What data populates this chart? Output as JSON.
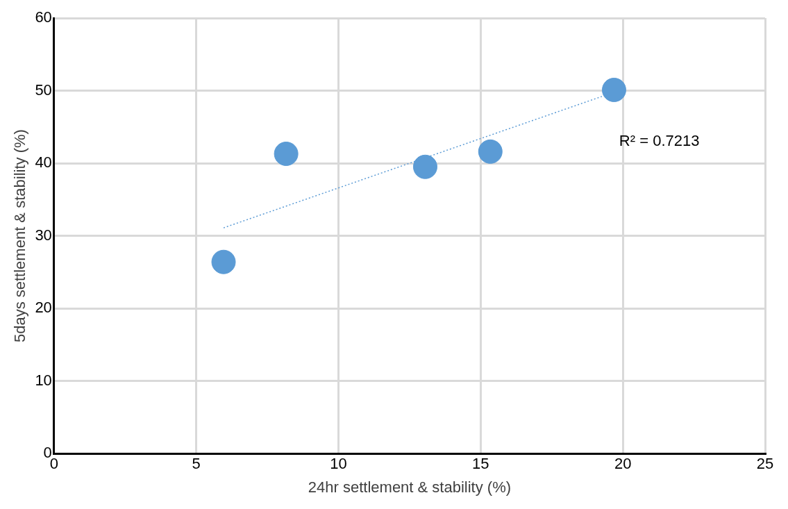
{
  "chart_data": {
    "type": "scatter",
    "xlabel": "24hr settlement & stability (%)",
    "ylabel": "5days settlement & stability (%)",
    "x": [
      5.96,
      8.16,
      13.05,
      15.34,
      19.69
    ],
    "series": [
      {
        "color": "#5b9bd5",
        "values": [
          26.4,
          41.3,
          39.5,
          41.6,
          50.1
        ],
        "marker": "circle"
      },
      {
        "type": "line",
        "x": [
          5.96,
          19.26
        ],
        "values": [
          31.1,
          49.2
        ],
        "color": "#5b9bd5",
        "line_style": "dotted",
        "marker": "none"
      }
    ],
    "xlim": [
      0,
      25
    ],
    "xticks": [
      0,
      5,
      10,
      15,
      20,
      25
    ],
    "ylim": [
      0,
      60
    ],
    "yticks": [
      0,
      10,
      20,
      30,
      40,
      50,
      60
    ],
    "grid": true,
    "legend": false,
    "annotations": [
      "R² = 0.7213"
    ]
  }
}
